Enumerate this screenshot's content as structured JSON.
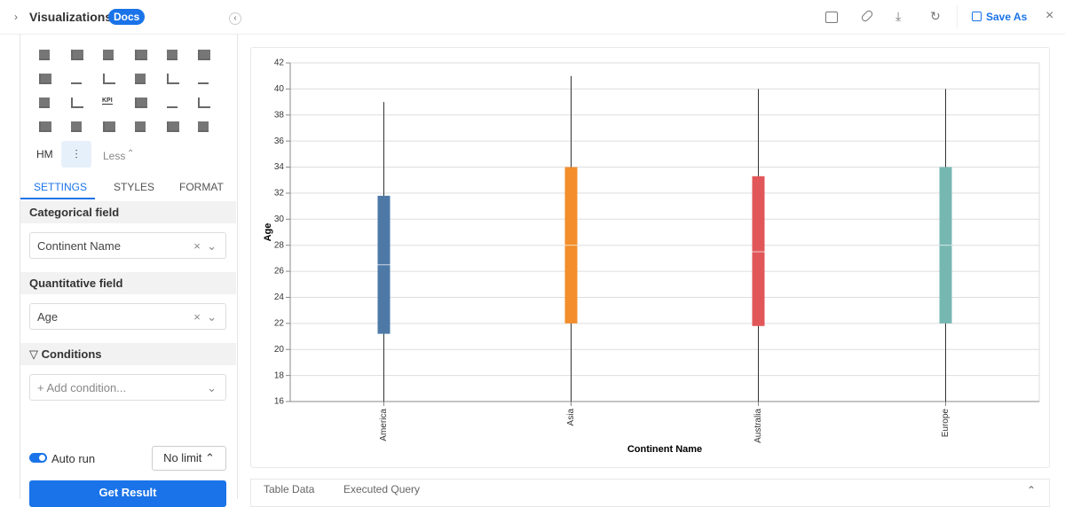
{
  "header": {
    "title": "Visualizations",
    "badge": "Docs",
    "save": "Save As"
  },
  "sidebar": {
    "kpi_icon": "KPI",
    "hm": "HM",
    "less": "Less",
    "tabs": [
      "SETTINGS",
      "STYLES",
      "FORMAT"
    ],
    "categorical_label": "Categorical field",
    "categorical_value": "Continent Name",
    "quantitative_label": "Quantitative field",
    "quantitative_value": "Age",
    "conditions_label": "Conditions",
    "add_condition": "+ Add condition...",
    "auto_run": "Auto run",
    "limit": "No limit",
    "submit": "Get Result"
  },
  "bottom_tabs": [
    "Table Data",
    "Executed Query"
  ],
  "chart_data": {
    "type": "box",
    "x_label": "Continent Name",
    "y_label": "Age",
    "categories": [
      "America",
      "Asia",
      "Australia",
      "Europe"
    ],
    "min": [
      16,
      16,
      16,
      16
    ],
    "q1": [
      21.2,
      22,
      21.8,
      22
    ],
    "median": [
      26.5,
      28,
      27.5,
      28
    ],
    "q3": [
      31.8,
      34,
      33.3,
      34
    ],
    "max": [
      39,
      41,
      40,
      40
    ],
    "colors": [
      "#4e79a7",
      "#f28e2b",
      "#e15759",
      "#76b7b2"
    ],
    "ylim": [
      16,
      42
    ],
    "yticks": [
      16,
      18,
      20,
      22,
      24,
      26,
      28,
      30,
      32,
      34,
      36,
      38,
      40,
      42
    ],
    "grid": true
  }
}
